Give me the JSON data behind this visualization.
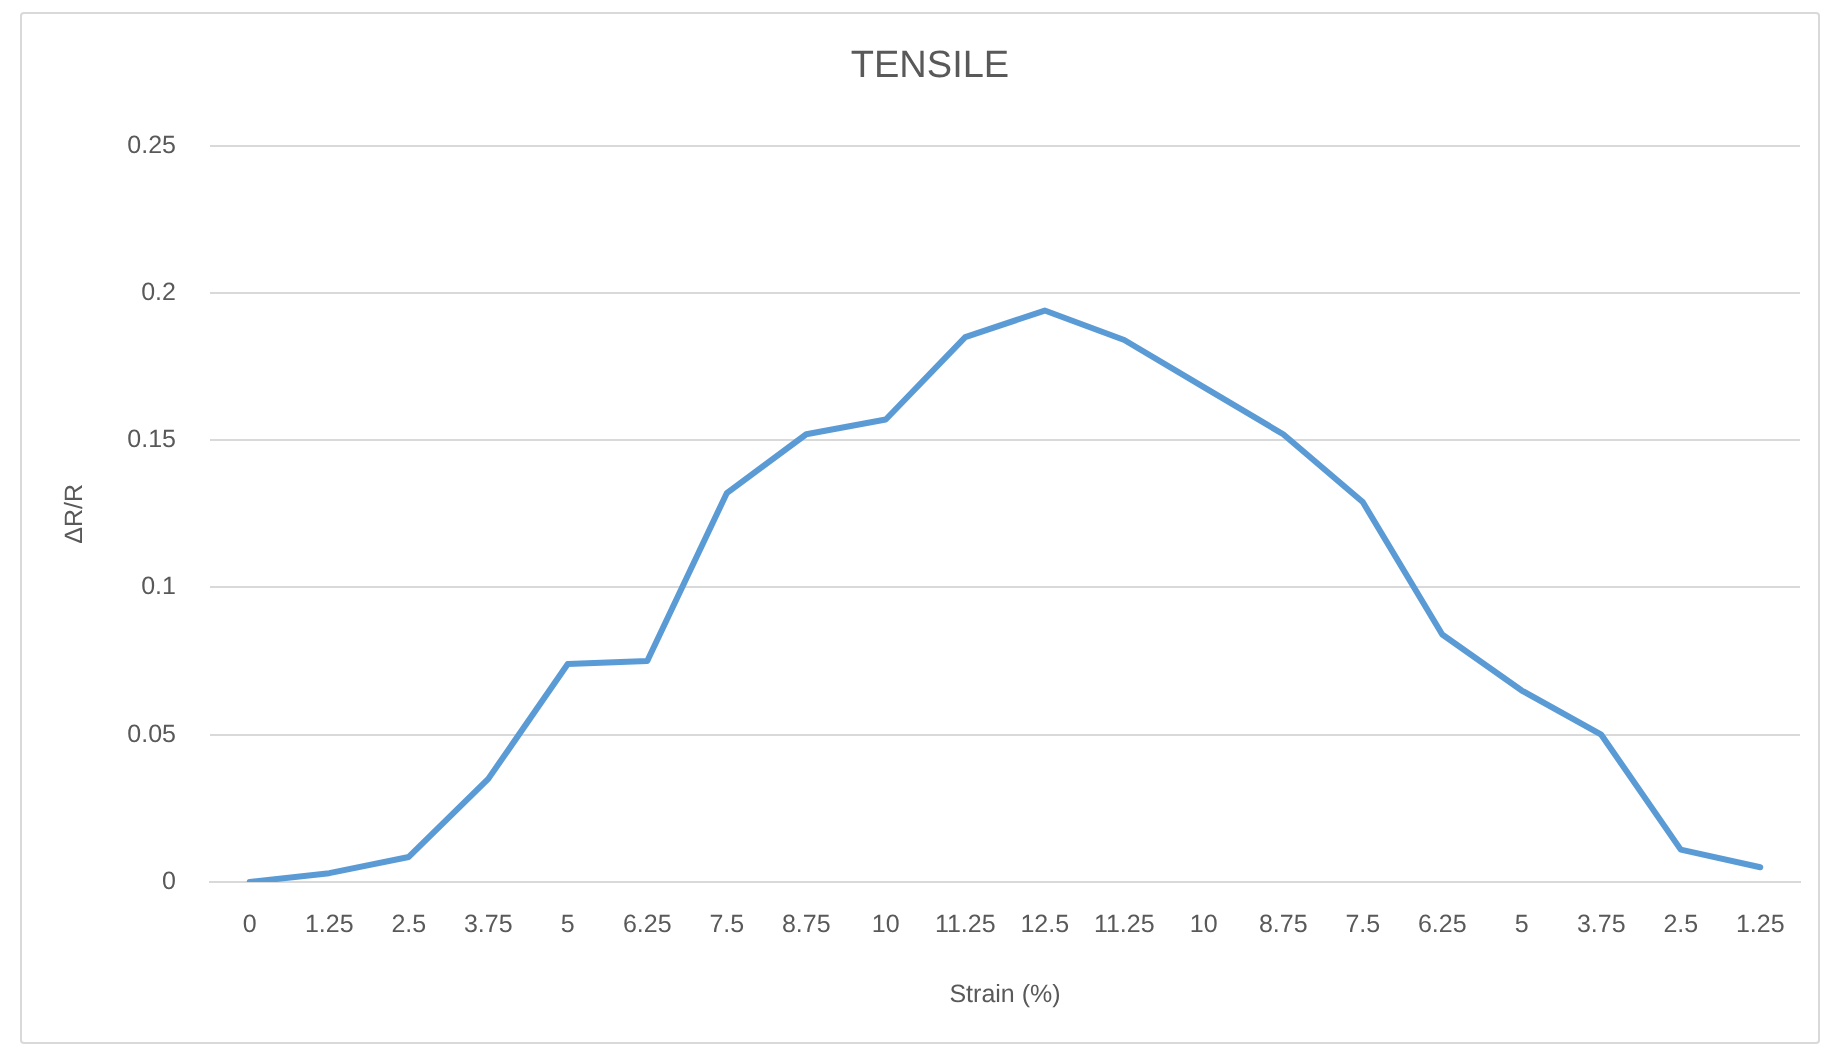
{
  "chart_data": {
    "type": "line",
    "title": "TENSILE",
    "xlabel": "Strain (%)",
    "ylabel": "ΔR/R",
    "categories": [
      "0",
      "1.25",
      "2.5",
      "3.75",
      "5",
      "6.25",
      "7.5",
      "8.75",
      "10",
      "11.25",
      "12.5",
      "11.25",
      "10",
      "8.75",
      "7.5",
      "6.25",
      "5",
      "3.75",
      "2.5",
      "1.25"
    ],
    "series": [
      {
        "color": "#5b9bd5",
        "values": [
          0,
          0.003,
          0.0085,
          0.035,
          0.074,
          0.075,
          0.132,
          0.152,
          0.157,
          0.185,
          0.194,
          0.184,
          0.168,
          0.152,
          0.129,
          0.084,
          0.065,
          0.05,
          0.011,
          0.005
        ]
      }
    ],
    "ylim": [
      0,
      0.25
    ],
    "yticks": [
      0,
      0.05,
      0.1,
      0.15,
      0.2,
      0.25
    ],
    "grid": "y",
    "legend": false,
    "marker": "none"
  }
}
